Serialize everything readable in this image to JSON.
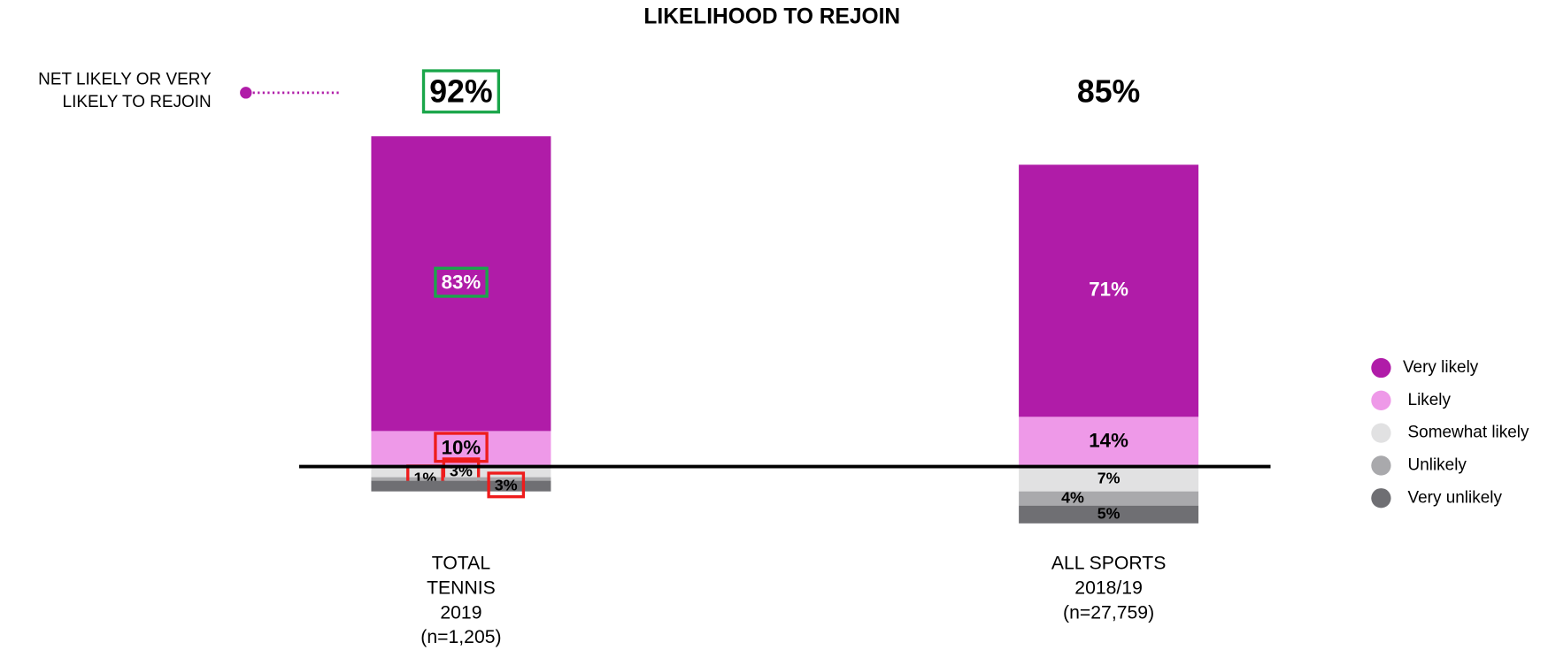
{
  "chart_data": {
    "type": "diverging_stacked_bar",
    "title": "LIKELIHOOD TO REJOIN",
    "categories": [
      [
        "TOTAL",
        "TENNIS",
        "2019",
        "(n=1,205)"
      ],
      [
        "ALL SPORTS",
        "2018/19",
        "(n=27,759)"
      ]
    ],
    "series": [
      {
        "name": "Very likely",
        "color": "#b01ca8",
        "side": "above",
        "values": [
          83,
          71
        ],
        "value_labels": [
          "83%",
          "71%"
        ]
      },
      {
        "name": "Likely",
        "color": "#ee99e8",
        "side": "above",
        "values": [
          10,
          14
        ],
        "value_labels": [
          "10%",
          "14%"
        ]
      },
      {
        "name": "Somewhat likely",
        "color": "#e1e1e2",
        "side": "below",
        "values": [
          3,
          7
        ],
        "value_labels": [
          "3%",
          "7%"
        ]
      },
      {
        "name": "Unlikely",
        "color": "#a9a9ac",
        "side": "below",
        "values": [
          1,
          4
        ],
        "value_labels": [
          "1%",
          "4%"
        ]
      },
      {
        "name": "Very unlikely",
        "color": "#6f6f73",
        "side": "below",
        "values": [
          3,
          5
        ],
        "value_labels": [
          "3%",
          "5%"
        ]
      }
    ],
    "net": {
      "label": [
        "NET LIKELY OR VERY",
        "LIKELY TO REJOIN"
      ],
      "values": [
        92,
        85
      ],
      "value_labels": [
        "92%",
        "85%"
      ]
    },
    "legend": "right"
  }
}
